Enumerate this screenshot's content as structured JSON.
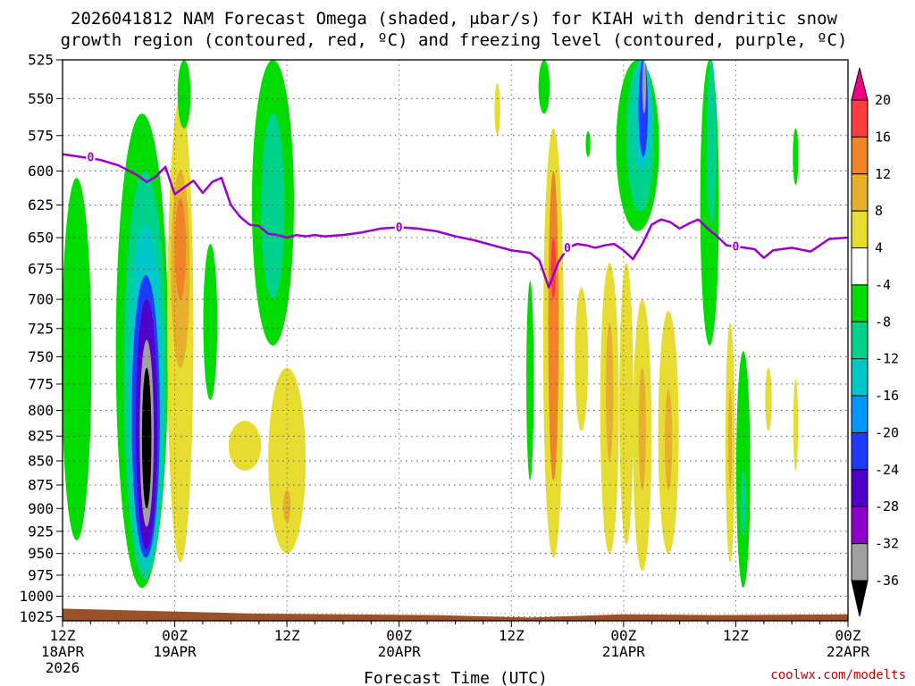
{
  "title_line1": "2026041812 NAM Forecast Omega (shaded, μbar/s) for KIAH with dendritic snow",
  "title_line2": "growth region (contoured, red, ºC) and freezing level (contoured, purple, ºC)",
  "credit": "coolwx.com/modelts",
  "chart_data": {
    "type": "heatmap",
    "title": "2026041812 NAM Forecast Omega (shaded, μbar/s) for KIAH with dendritic snow growth region (contoured, red, ºC) and freezing level (contoured, purple, ºC)",
    "xlabel": "Forecast Time (UTC)",
    "ylabel": "",
    "x_range_hours": [
      0,
      84
    ],
    "x_ticks": [
      {
        "hour": 0,
        "label": "12Z",
        "date": "18APR",
        "year": "2026"
      },
      {
        "hour": 12,
        "label": "00Z",
        "date": "19APR"
      },
      {
        "hour": 24,
        "label": "12Z"
      },
      {
        "hour": 36,
        "label": "00Z",
        "date": "20APR"
      },
      {
        "hour": 48,
        "label": "12Z"
      },
      {
        "hour": 60,
        "label": "00Z",
        "date": "21APR"
      },
      {
        "hour": 72,
        "label": "12Z"
      },
      {
        "hour": 84,
        "label": "00Z",
        "date": "22APR"
      }
    ],
    "y_ticks": [
      525,
      550,
      575,
      600,
      625,
      650,
      675,
      700,
      725,
      750,
      775,
      800,
      825,
      850,
      875,
      900,
      925,
      950,
      975,
      1000,
      1025
    ],
    "y_range": [
      525,
      1030
    ],
    "y_scale": "log (pressure, hPa)",
    "grid": true,
    "colorbar": {
      "levels": [
        -36,
        -32,
        -28,
        -24,
        -20,
        -16,
        -12,
        -8,
        -4,
        4,
        8,
        12,
        16,
        20
      ],
      "labels": [
        "20",
        "16",
        "12",
        "8",
        "4",
        "-4",
        "-8",
        "-12",
        "-16",
        "-20",
        "-24",
        "-28",
        "-32",
        "-36"
      ],
      "colors": [
        "#000000",
        "#a0a0a0",
        "#8c00c8",
        "#5000c8",
        "#1e3cff",
        "#0096ff",
        "#00c8c8",
        "#00d28c",
        "#00dc00",
        "#ffffff",
        "#e6dc32",
        "#e6af2d",
        "#f08228",
        "#fa3c3c",
        "#f00082"
      ]
    },
    "freezing_level": {
      "label": "0",
      "color": "#9900cc",
      "hours": [
        0,
        2,
        4,
        6,
        8,
        9,
        10,
        11,
        12,
        13,
        14,
        15,
        16,
        17,
        18,
        19,
        20,
        21,
        22,
        23,
        24,
        25,
        26,
        27,
        28,
        30,
        32,
        34,
        36,
        38,
        40,
        42,
        44,
        46,
        48,
        50,
        51,
        52,
        53,
        54,
        55,
        56,
        57,
        58,
        59,
        60,
        61,
        62,
        63,
        64,
        65,
        66,
        67,
        68,
        69,
        70,
        71,
        72,
        73,
        74,
        75,
        76,
        78,
        80,
        82,
        84
      ],
      "pressure": [
        588,
        590,
        592,
        596,
        603,
        608,
        604,
        597,
        617,
        612,
        607,
        616,
        608,
        605,
        625,
        634,
        640,
        641,
        647,
        648,
        650,
        648,
        649,
        648,
        649,
        648,
        646,
        643,
        642,
        643,
        645,
        649,
        652,
        656,
        660,
        662,
        668,
        690,
        670,
        658,
        655,
        656,
        658,
        656,
        655,
        660,
        667,
        655,
        640,
        636,
        638,
        643,
        639,
        636,
        643,
        649,
        656,
        657,
        658,
        659,
        666,
        660,
        658,
        661,
        651,
        650
      ]
    },
    "omega_cells": [
      {
        "hour": 1.5,
        "top": 605,
        "bottom": 935,
        "width": 3.2,
        "value": -6
      },
      {
        "hour": 8.5,
        "top": 560,
        "bottom": 990,
        "width": 5.6,
        "value": -8
      },
      {
        "hour": 8.8,
        "top": 600,
        "bottom": 980,
        "width": 4.5,
        "value": -12
      },
      {
        "hour": 8.9,
        "top": 640,
        "bottom": 970,
        "width": 3.7,
        "value": -16
      },
      {
        "hour": 8.9,
        "top": 680,
        "bottom": 955,
        "width": 3.0,
        "value": -22
      },
      {
        "hour": 9.0,
        "top": 700,
        "bottom": 945,
        "width": 2.3,
        "value": -27
      },
      {
        "hour": 9.0,
        "top": 735,
        "bottom": 920,
        "width": 1.5,
        "value": -33
      },
      {
        "hour": 9.0,
        "top": 760,
        "bottom": 900,
        "width": 1.0,
        "value": -38
      },
      {
        "hour": 12.6,
        "top": 550,
        "bottom": 960,
        "width": 2.8,
        "value": 6
      },
      {
        "hour": 12.6,
        "top": 600,
        "bottom": 760,
        "width": 2.0,
        "value": 10
      },
      {
        "hour": 12.6,
        "top": 620,
        "bottom": 700,
        "width": 1.2,
        "value": 14
      },
      {
        "hour": 13.0,
        "top": 525,
        "bottom": 570,
        "width": 1.4,
        "value": -6
      },
      {
        "hour": 15.8,
        "top": 655,
        "bottom": 790,
        "width": 1.5,
        "value": -6
      },
      {
        "hour": 19.5,
        "top": 810,
        "bottom": 860,
        "width": 3.5,
        "value": 5
      },
      {
        "hour": 22.5,
        "top": 525,
        "bottom": 740,
        "width": 4.5,
        "value": -6
      },
      {
        "hour": 22.5,
        "top": 560,
        "bottom": 700,
        "width": 2.5,
        "value": -10
      },
      {
        "hour": 24.0,
        "top": 760,
        "bottom": 950,
        "width": 4.0,
        "value": 6
      },
      {
        "hour": 24.0,
        "top": 880,
        "bottom": 915,
        "width": 0.8,
        "value": 10
      },
      {
        "hour": 46.5,
        "top": 540,
        "bottom": 575,
        "width": 0.6,
        "value": 5
      },
      {
        "hour": 50.0,
        "top": 685,
        "bottom": 870,
        "width": 0.8,
        "value": -6
      },
      {
        "hour": 52.3,
        "top": 585,
        "bottom": 660,
        "width": 0.8,
        "value": -6
      },
      {
        "hour": 52.5,
        "top": 570,
        "bottom": 955,
        "width": 2.2,
        "value": 6
      },
      {
        "hour": 52.5,
        "top": 600,
        "bottom": 870,
        "width": 1.1,
        "value": 12
      },
      {
        "hour": 52.5,
        "top": 650,
        "bottom": 700,
        "width": 0.5,
        "value": 16
      },
      {
        "hour": 51.5,
        "top": 525,
        "bottom": 560,
        "width": 1.2,
        "value": -6
      },
      {
        "hour": 55.5,
        "top": 690,
        "bottom": 820,
        "width": 1.4,
        "value": 6
      },
      {
        "hour": 58.5,
        "top": 670,
        "bottom": 950,
        "width": 2.0,
        "value": 6
      },
      {
        "hour": 58.5,
        "top": 720,
        "bottom": 850,
        "width": 0.8,
        "value": 10
      },
      {
        "hour": 60.3,
        "top": 670,
        "bottom": 940,
        "width": 1.5,
        "value": 6
      },
      {
        "hour": 61.5,
        "top": 525,
        "bottom": 645,
        "width": 4.6,
        "value": -6
      },
      {
        "hour": 61.8,
        "top": 525,
        "bottom": 630,
        "width": 3.0,
        "value": -10
      },
      {
        "hour": 62.0,
        "top": 525,
        "bottom": 600,
        "width": 2.0,
        "value": -16
      },
      {
        "hour": 62.1,
        "top": 525,
        "bottom": 590,
        "width": 1.0,
        "value": -24
      },
      {
        "hour": 62.2,
        "top": 525,
        "bottom": 560,
        "width": 0.4,
        "value": -33
      },
      {
        "hour": 62.0,
        "top": 700,
        "bottom": 970,
        "width": 2.0,
        "value": 6
      },
      {
        "hour": 62.0,
        "top": 760,
        "bottom": 880,
        "width": 0.8,
        "value": 10
      },
      {
        "hour": 64.8,
        "top": 710,
        "bottom": 950,
        "width": 2.2,
        "value": 6
      },
      {
        "hour": 64.8,
        "top": 780,
        "bottom": 880,
        "width": 0.8,
        "value": 10
      },
      {
        "hour": 69.2,
        "top": 525,
        "bottom": 740,
        "width": 2.0,
        "value": -6
      },
      {
        "hour": 69.4,
        "top": 525,
        "bottom": 640,
        "width": 1.0,
        "value": -12
      },
      {
        "hour": 71.4,
        "top": 720,
        "bottom": 960,
        "width": 1.0,
        "value": 6
      },
      {
        "hour": 71.4,
        "top": 780,
        "bottom": 880,
        "width": 0.4,
        "value": 10
      },
      {
        "hour": 72.8,
        "top": 745,
        "bottom": 990,
        "width": 1.5,
        "value": -6
      },
      {
        "hour": 72.8,
        "top": 860,
        "bottom": 930,
        "width": 0.6,
        "value": -12
      },
      {
        "hour": 75.5,
        "top": 760,
        "bottom": 820,
        "width": 0.7,
        "value": 6
      },
      {
        "hour": 78.4,
        "top": 570,
        "bottom": 610,
        "width": 0.6,
        "value": -6
      },
      {
        "hour": 78.4,
        "top": 770,
        "bottom": 860,
        "width": 0.5,
        "value": 6
      },
      {
        "hour": 56.2,
        "top": 572,
        "bottom": 590,
        "width": 0.5,
        "value": -6
      }
    ]
  }
}
